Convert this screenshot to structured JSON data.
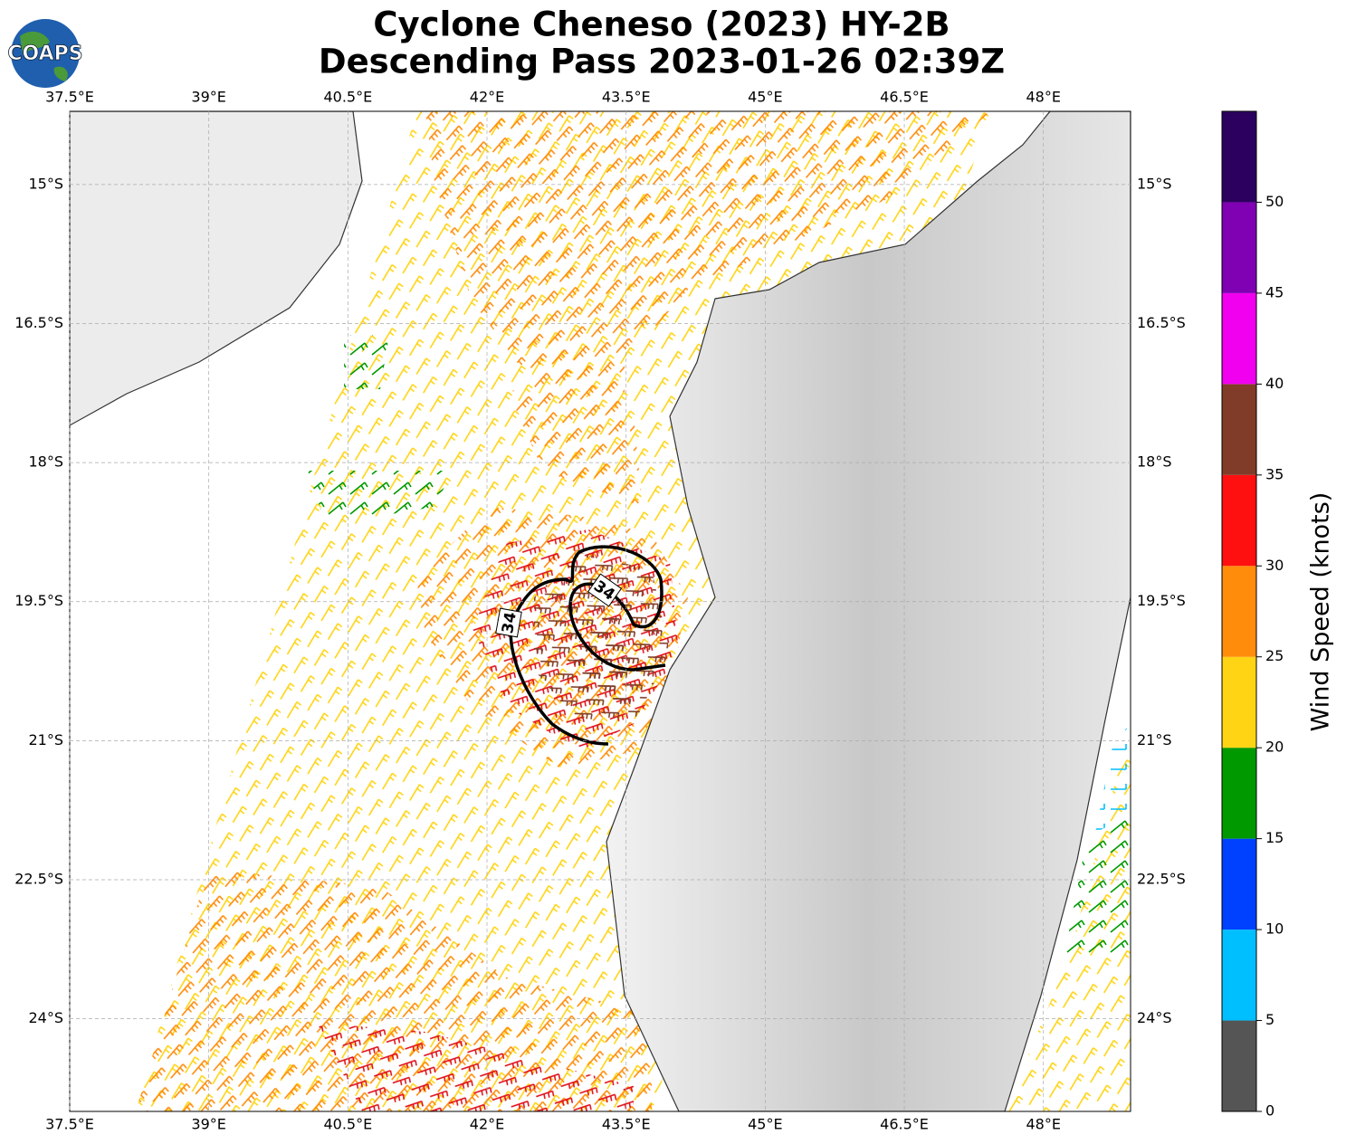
{
  "header": {
    "title": "Cyclone Cheneso (2023) HY-2B",
    "subtitle": "Descending Pass 2023-01-26 02:39Z",
    "logo": "COAPS"
  },
  "map": {
    "xlim": [
      37.5,
      48.94
    ],
    "ylim": [
      -25.0,
      -14.21
    ],
    "grid": true,
    "xticks": [
      {
        "value": 37.5,
        "label": "37.5°E"
      },
      {
        "value": 39,
        "label": "39°E"
      },
      {
        "value": 40.5,
        "label": "40.5°E"
      },
      {
        "value": 42,
        "label": "42°E"
      },
      {
        "value": 43.5,
        "label": "43.5°E"
      },
      {
        "value": 45,
        "label": "45°E"
      },
      {
        "value": 46.5,
        "label": "46.5°E"
      },
      {
        "value": 48,
        "label": "48°E"
      }
    ],
    "yticks": [
      {
        "value": -15,
        "label": "15°S"
      },
      {
        "value": -16.5,
        "label": "16.5°S"
      },
      {
        "value": -18,
        "label": "18°S"
      },
      {
        "value": -19.5,
        "label": "19.5°S"
      },
      {
        "value": -21,
        "label": "21°S"
      },
      {
        "value": -22.5,
        "label": "22.5°S"
      },
      {
        "value": -24,
        "label": "24°S"
      }
    ],
    "contour_labels": [
      "34",
      "34"
    ]
  },
  "colorbar": {
    "label": "Wind Speed (knots)",
    "lim": [
      0,
      55
    ],
    "bounds": [
      0,
      5,
      10,
      15,
      20,
      25,
      30,
      35,
      40,
      45,
      50,
      55
    ],
    "colors": [
      "#555555",
      "#00bfff",
      "#0040ff",
      "#009900",
      "#ffd414",
      "#ff8c0a",
      "#ff1010",
      "#803c28",
      "#f000ee",
      "#8000b4",
      "#2c005e"
    ],
    "ticks": [
      0,
      5,
      10,
      15,
      20,
      25,
      30,
      35,
      40,
      45,
      50
    ]
  }
}
